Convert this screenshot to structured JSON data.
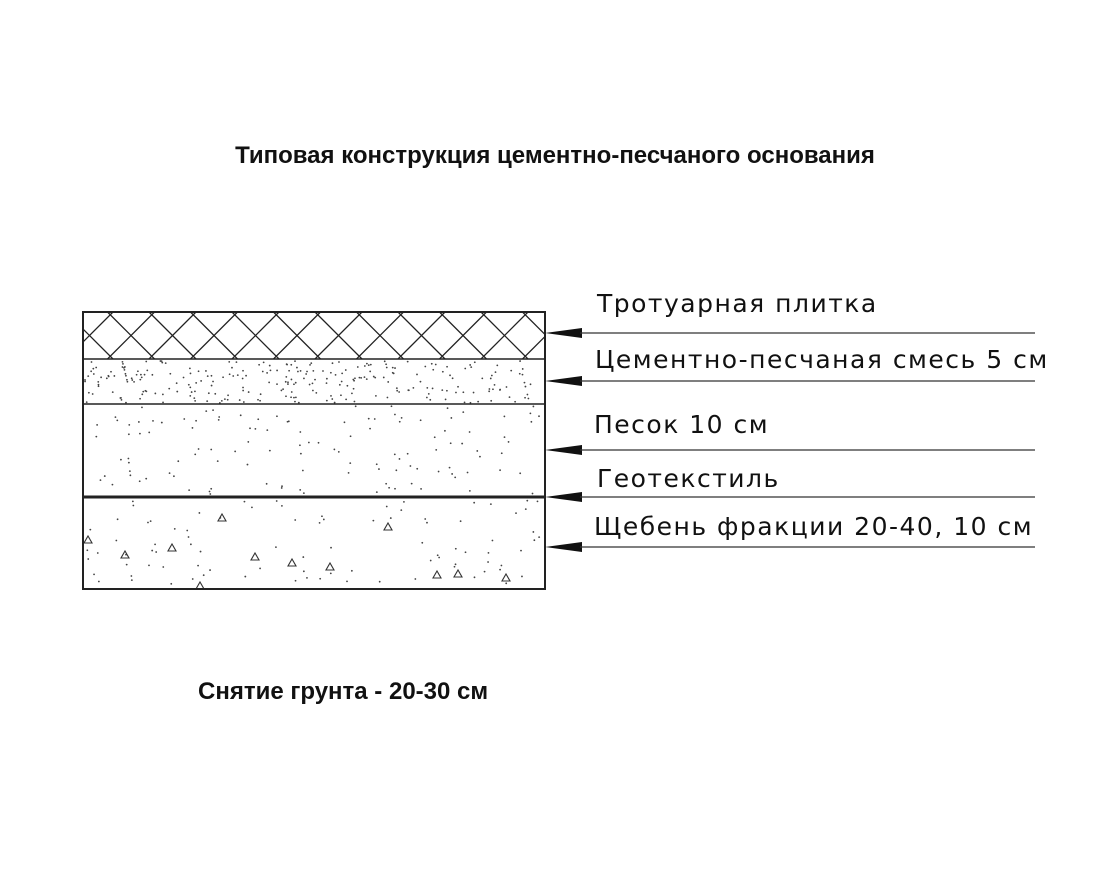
{
  "title": "Типовая конструкция цементно-песчаного основания",
  "footer_note": "Снятие грунта - 20-30 см",
  "layers": [
    {
      "label": "Тротуарная плитка",
      "hatch": "crosshatch"
    },
    {
      "label": "Цементно-песчаная смесь 5 см",
      "hatch": "dense-dots"
    },
    {
      "label": "Песок 10 см",
      "hatch": "sparse-dots"
    },
    {
      "label": "Геотекстиль",
      "hatch": "line"
    },
    {
      "label": "Щебень фракции 20-40, 10 см",
      "hatch": "dots-and-triangles"
    }
  ],
  "colors": {
    "ink": "#111111",
    "background": "#ffffff"
  }
}
